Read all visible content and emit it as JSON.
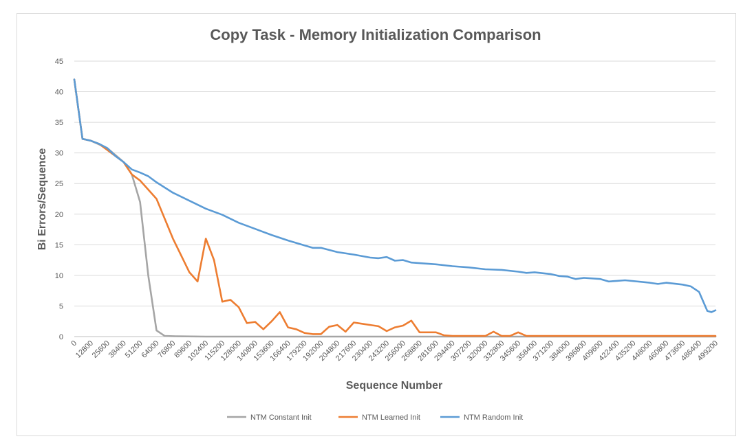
{
  "chart_data": {
    "type": "line",
    "title": "Copy Task - Memory Initialization Comparison",
    "xlabel": "Sequence Number",
    "ylabel": "Bi Errors/Sequence",
    "ylim": [
      0,
      45
    ],
    "yticks": [
      "0",
      "5",
      "10",
      "15",
      "20",
      "25",
      "30",
      "35",
      "40",
      "45"
    ],
    "xlim": [
      0,
      499200
    ],
    "xticks": [
      "0",
      "12800",
      "25600",
      "38400",
      "51200",
      "64000",
      "76800",
      "89600",
      "102400",
      "115200",
      "128000",
      "140800",
      "153600",
      "166400",
      "179200",
      "192000",
      "204800",
      "217600",
      "230400",
      "243200",
      "256000",
      "268800",
      "281600",
      "294400",
      "307200",
      "320000",
      "332800",
      "345600",
      "358400",
      "371200",
      "384000",
      "396800",
      "409600",
      "422400",
      "435200",
      "448000",
      "460800",
      "473600",
      "486400",
      "499200"
    ],
    "grid": true,
    "legend_position": "bottom",
    "series": [
      {
        "name": "NTM Constant Init",
        "color": "#a5a5a5",
        "points": [
          [
            0,
            42
          ],
          [
            6400,
            32.3
          ],
          [
            12800,
            32
          ],
          [
            25600,
            30.8
          ],
          [
            38400,
            28.5
          ],
          [
            44800,
            26.5
          ],
          [
            51200,
            22
          ],
          [
            57600,
            10
          ],
          [
            64000,
            1
          ],
          [
            70400,
            0.1
          ],
          [
            80000,
            0.05
          ],
          [
            102400,
            0
          ],
          [
            499200,
            0
          ]
        ]
      },
      {
        "name": "NTM Learned Init",
        "color": "#ed7d31",
        "points": [
          [
            0,
            42
          ],
          [
            6400,
            32.3
          ],
          [
            12800,
            32
          ],
          [
            19200,
            31.5
          ],
          [
            25600,
            30.5
          ],
          [
            32000,
            29.5
          ],
          [
            38400,
            28.5
          ],
          [
            44800,
            26.5
          ],
          [
            51200,
            25.5
          ],
          [
            64000,
            22.5
          ],
          [
            76800,
            16
          ],
          [
            89600,
            10.5
          ],
          [
            96000,
            9
          ],
          [
            102400,
            16
          ],
          [
            108800,
            12.5
          ],
          [
            115200,
            5.7
          ],
          [
            121600,
            6
          ],
          [
            128000,
            4.8
          ],
          [
            134400,
            2.2
          ],
          [
            140800,
            2.4
          ],
          [
            147200,
            1.2
          ],
          [
            153600,
            2.5
          ],
          [
            160000,
            4
          ],
          [
            166400,
            1.5
          ],
          [
            172800,
            1.2
          ],
          [
            179200,
            0.6
          ],
          [
            185600,
            0.4
          ],
          [
            192000,
            0.4
          ],
          [
            198400,
            1.6
          ],
          [
            204800,
            1.9
          ],
          [
            211200,
            0.8
          ],
          [
            217600,
            2.3
          ],
          [
            224000,
            2.1
          ],
          [
            230400,
            1.9
          ],
          [
            236800,
            1.7
          ],
          [
            243200,
            0.9
          ],
          [
            249600,
            1.5
          ],
          [
            256000,
            1.8
          ],
          [
            262400,
            2.6
          ],
          [
            268800,
            0.7
          ],
          [
            275200,
            0.7
          ],
          [
            281600,
            0.7
          ],
          [
            288000,
            0.2
          ],
          [
            294400,
            0.1
          ],
          [
            320000,
            0.1
          ],
          [
            326400,
            0.8
          ],
          [
            332800,
            0.1
          ],
          [
            339200,
            0.1
          ],
          [
            345600,
            0.7
          ],
          [
            352000,
            0.1
          ],
          [
            371200,
            0.1
          ],
          [
            499200,
            0.1
          ]
        ]
      },
      {
        "name": "NTM Random Init",
        "color": "#5b9bd5",
        "points": [
          [
            0,
            42
          ],
          [
            6400,
            32.3
          ],
          [
            12800,
            32
          ],
          [
            19200,
            31.5
          ],
          [
            25600,
            30.8
          ],
          [
            32000,
            29.5
          ],
          [
            38400,
            28.5
          ],
          [
            44800,
            27.3
          ],
          [
            51200,
            26.8
          ],
          [
            57600,
            26.2
          ],
          [
            64000,
            25.2
          ],
          [
            76800,
            23.5
          ],
          [
            89600,
            22.2
          ],
          [
            102400,
            20.9
          ],
          [
            115200,
            19.9
          ],
          [
            128000,
            18.6
          ],
          [
            140800,
            17.6
          ],
          [
            153600,
            16.6
          ],
          [
            166400,
            15.7
          ],
          [
            179200,
            14.9
          ],
          [
            185600,
            14.5
          ],
          [
            192000,
            14.5
          ],
          [
            204800,
            13.8
          ],
          [
            217600,
            13.4
          ],
          [
            230400,
            12.9
          ],
          [
            236800,
            12.8
          ],
          [
            243200,
            13
          ],
          [
            249600,
            12.4
          ],
          [
            256000,
            12.5
          ],
          [
            262400,
            12.1
          ],
          [
            281600,
            11.8
          ],
          [
            294400,
            11.5
          ],
          [
            307200,
            11.3
          ],
          [
            320000,
            11
          ],
          [
            332800,
            10.9
          ],
          [
            345600,
            10.6
          ],
          [
            352000,
            10.4
          ],
          [
            358400,
            10.5
          ],
          [
            371200,
            10.2
          ],
          [
            377600,
            9.9
          ],
          [
            384000,
            9.8
          ],
          [
            390400,
            9.4
          ],
          [
            396800,
            9.6
          ],
          [
            409600,
            9.4
          ],
          [
            416000,
            9
          ],
          [
            422400,
            9.1
          ],
          [
            428800,
            9.2
          ],
          [
            448000,
            8.8
          ],
          [
            454400,
            8.6
          ],
          [
            460800,
            8.8
          ],
          [
            473600,
            8.5
          ],
          [
            480000,
            8.2
          ],
          [
            486400,
            7.3
          ],
          [
            492800,
            4.2
          ],
          [
            496000,
            4
          ],
          [
            499200,
            4.3
          ]
        ]
      }
    ]
  }
}
